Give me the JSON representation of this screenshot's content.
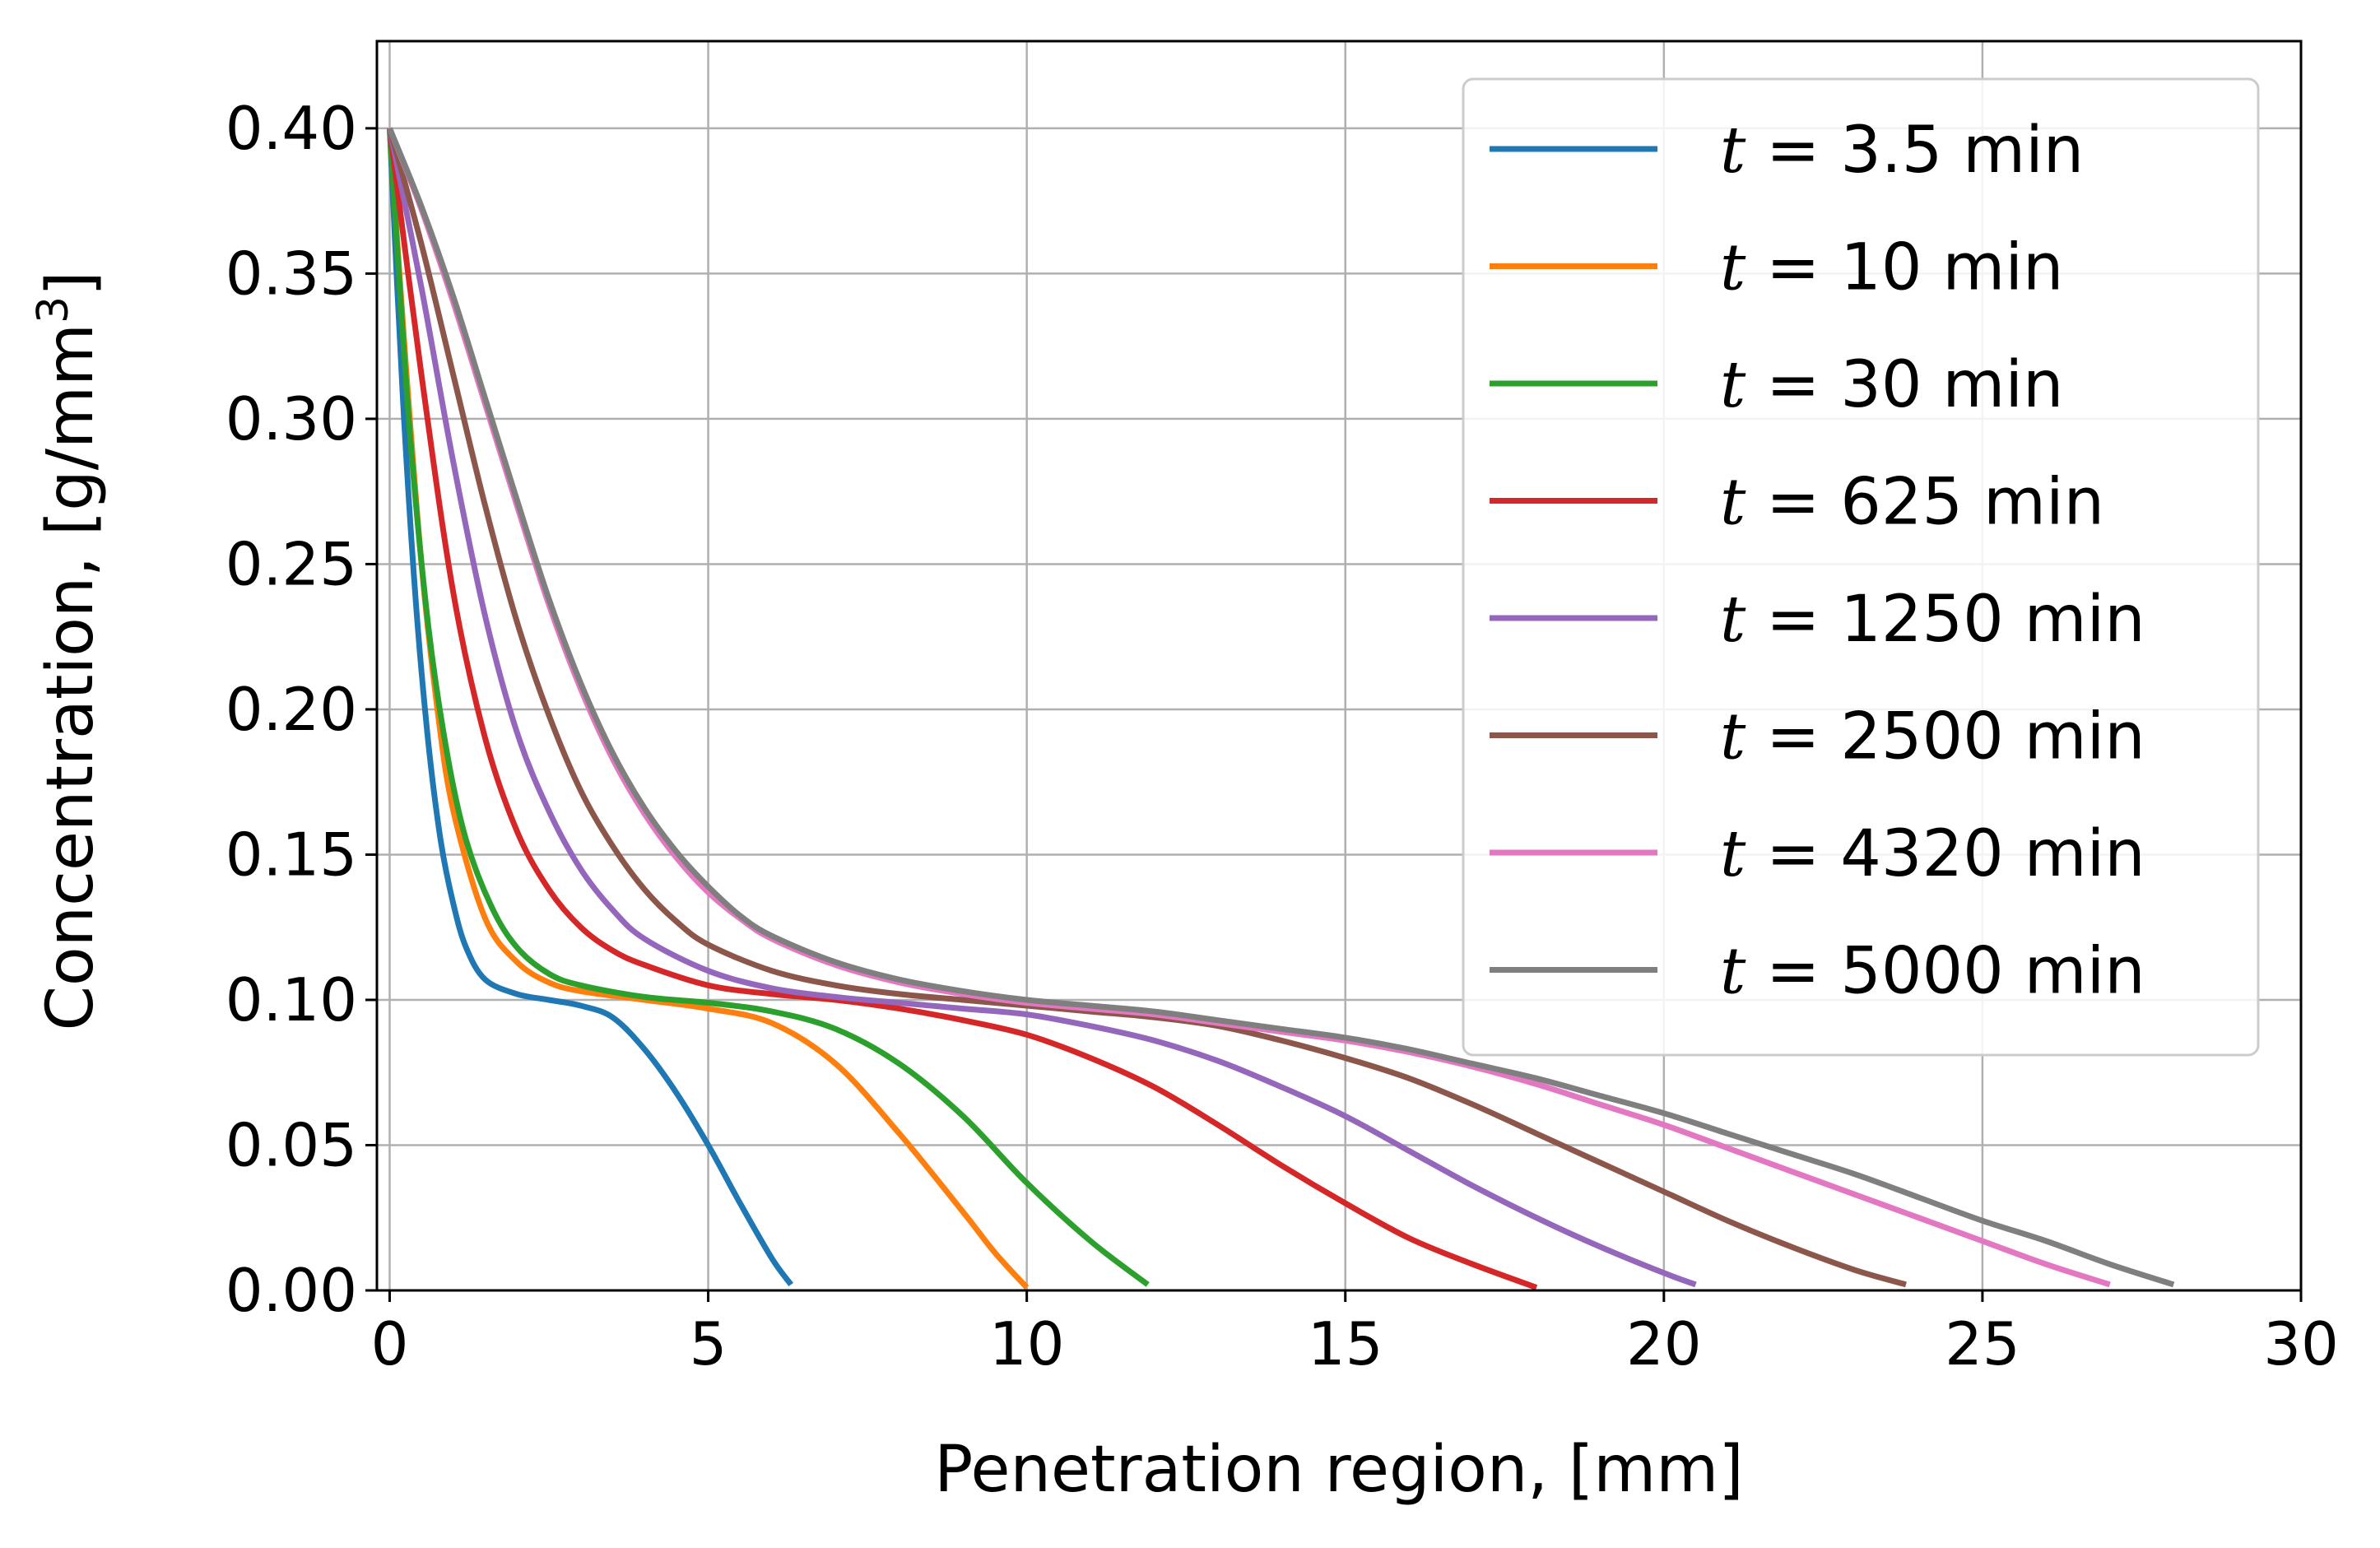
{
  "chart_data": {
    "type": "line",
    "xlabel": "Penetration region, [mm]",
    "ylabel": {
      "prefix": "Concentration,  [g/mm",
      "sup": "3",
      "suffix": "]"
    },
    "xlim": [
      -0.2,
      30
    ],
    "ylim": [
      0,
      0.43
    ],
    "xticks": [
      0,
      5,
      10,
      15,
      20,
      25,
      30
    ],
    "xtick_labels": [
      "0",
      "5",
      "10",
      "15",
      "20",
      "25",
      "30"
    ],
    "yticks": [
      0.0,
      0.05,
      0.1,
      0.15,
      0.2,
      0.25,
      0.3,
      0.35,
      0.4
    ],
    "ytick_labels": [
      "0.00",
      "0.05",
      "0.10",
      "0.15",
      "0.20",
      "0.25",
      "0.30",
      "0.35",
      "0.40"
    ],
    "grid": true,
    "legend_position": "top-right",
    "legend_var": "t",
    "legend_eq": " = ",
    "series": [
      {
        "name": "3.5 min",
        "color": "#1f77b4",
        "x": [
          0,
          0.2,
          0.4,
          0.6,
          0.8,
          1.0,
          1.2,
          1.5,
          2.0,
          2.5,
          3.0,
          3.5,
          4.0,
          4.5,
          5.0,
          5.5,
          6.0,
          6.3
        ],
        "y": [
          0.4,
          0.31,
          0.24,
          0.19,
          0.155,
          0.133,
          0.118,
          0.107,
          0.102,
          0.1,
          0.098,
          0.094,
          0.083,
          0.068,
          0.05,
          0.03,
          0.011,
          0.002
        ]
      },
      {
        "name": "10 min",
        "color": "#ff7f0e",
        "x": [
          0,
          0.25,
          0.5,
          0.75,
          1.0,
          1.5,
          2.0,
          2.5,
          3.0,
          4.0,
          5.0,
          6.0,
          7.0,
          8.0,
          9.0,
          9.5,
          10.0
        ],
        "y": [
          0.4,
          0.32,
          0.25,
          0.2,
          0.165,
          0.128,
          0.113,
          0.106,
          0.103,
          0.1,
          0.097,
          0.092,
          0.078,
          0.054,
          0.027,
          0.013,
          0.001
        ]
      },
      {
        "name": "30 min",
        "color": "#2ca02c",
        "x": [
          0,
          0.3,
          0.6,
          0.9,
          1.2,
          1.6,
          2.0,
          2.5,
          3.0,
          4.0,
          5.0,
          6.0,
          7.0,
          8.0,
          9.0,
          10.0,
          11.0,
          11.9
        ],
        "y": [
          0.4,
          0.3,
          0.23,
          0.185,
          0.155,
          0.132,
          0.118,
          0.109,
          0.105,
          0.101,
          0.099,
          0.096,
          0.09,
          0.078,
          0.06,
          0.037,
          0.017,
          0.002
        ]
      },
      {
        "name": "625 min",
        "color": "#d62728",
        "x": [
          0,
          0.5,
          1.0,
          1.5,
          2.0,
          2.5,
          3.0,
          3.5,
          4.0,
          5.0,
          6.0,
          7.0,
          8.0,
          9.0,
          10.0,
          11.0,
          12.0,
          13.0,
          14.0,
          15.0,
          16.0,
          17.0,
          18.0
        ],
        "y": [
          0.4,
          0.315,
          0.24,
          0.19,
          0.158,
          0.138,
          0.125,
          0.117,
          0.112,
          0.105,
          0.102,
          0.1,
          0.097,
          0.093,
          0.088,
          0.08,
          0.07,
          0.057,
          0.043,
          0.03,
          0.018,
          0.009,
          0.001
        ]
      },
      {
        "name": "1250 min",
        "color": "#9467bd",
        "x": [
          0,
          0.5,
          1.0,
          1.5,
          2.0,
          2.5,
          3.0,
          3.5,
          4.0,
          5.0,
          6.0,
          7.0,
          8.0,
          9.0,
          10.0,
          11.0,
          12.0,
          13.0,
          14.0,
          15.0,
          16.0,
          17.0,
          18.0,
          19.0,
          20.0,
          20.5
        ],
        "y": [
          0.4,
          0.345,
          0.285,
          0.232,
          0.192,
          0.165,
          0.145,
          0.131,
          0.121,
          0.11,
          0.104,
          0.101,
          0.099,
          0.097,
          0.095,
          0.091,
          0.086,
          0.079,
          0.07,
          0.06,
          0.048,
          0.036,
          0.025,
          0.015,
          0.006,
          0.002
        ]
      },
      {
        "name": "2500 min",
        "color": "#8c564b",
        "x": [
          0,
          0.5,
          1.0,
          1.5,
          2.0,
          2.5,
          3.0,
          3.5,
          4.0,
          4.5,
          5.0,
          6.0,
          7.0,
          8.0,
          9.0,
          10.0,
          11.0,
          12.0,
          13.0,
          14.0,
          15.0,
          16.0,
          17.0,
          18.0,
          19.0,
          20.0,
          21.0,
          22.0,
          23.0,
          23.8
        ],
        "y": [
          0.4,
          0.36,
          0.315,
          0.27,
          0.23,
          0.198,
          0.172,
          0.153,
          0.138,
          0.127,
          0.119,
          0.11,
          0.105,
          0.102,
          0.1,
          0.098,
          0.096,
          0.094,
          0.091,
          0.086,
          0.08,
          0.073,
          0.064,
          0.054,
          0.044,
          0.034,
          0.024,
          0.015,
          0.007,
          0.002
        ]
      },
      {
        "name": "4320 min",
        "color": "#e377c2",
        "x": [
          0,
          0.5,
          1.0,
          1.5,
          2.0,
          2.5,
          3.0,
          3.5,
          4.0,
          4.5,
          5.0,
          5.5,
          6.0,
          7.0,
          8.0,
          9.0,
          10.0,
          11.0,
          12.0,
          13.0,
          14.0,
          15.0,
          16.0,
          17.0,
          18.0,
          19.0,
          20.0,
          21.0,
          22.0,
          23.0,
          24.0,
          25.0,
          26.0,
          27.0
        ],
        "y": [
          0.4,
          0.372,
          0.34,
          0.305,
          0.27,
          0.236,
          0.207,
          0.183,
          0.164,
          0.149,
          0.137,
          0.128,
          0.121,
          0.112,
          0.106,
          0.102,
          0.099,
          0.097,
          0.095,
          0.092,
          0.089,
          0.086,
          0.082,
          0.077,
          0.071,
          0.064,
          0.057,
          0.049,
          0.041,
          0.033,
          0.025,
          0.017,
          0.009,
          0.002
        ]
      },
      {
        "name": "5000 min",
        "color": "#7f7f7f",
        "x": [
          0,
          0.5,
          1.0,
          1.5,
          2.0,
          2.5,
          3.0,
          3.5,
          4.0,
          4.5,
          5.0,
          5.5,
          6.0,
          7.0,
          8.0,
          9.0,
          10.0,
          11.0,
          12.0,
          13.0,
          14.0,
          15.0,
          16.0,
          17.0,
          18.0,
          19.0,
          20.0,
          21.0,
          22.0,
          23.0,
          24.0,
          25.0,
          26.0,
          27.0,
          28.0
        ],
        "y": [
          0.4,
          0.373,
          0.342,
          0.307,
          0.272,
          0.238,
          0.209,
          0.185,
          0.166,
          0.151,
          0.139,
          0.129,
          0.122,
          0.113,
          0.107,
          0.103,
          0.1,
          0.098,
          0.096,
          0.093,
          0.09,
          0.087,
          0.083,
          0.078,
          0.073,
          0.067,
          0.061,
          0.054,
          0.047,
          0.04,
          0.032,
          0.024,
          0.017,
          0.009,
          0.002
        ]
      }
    ]
  }
}
